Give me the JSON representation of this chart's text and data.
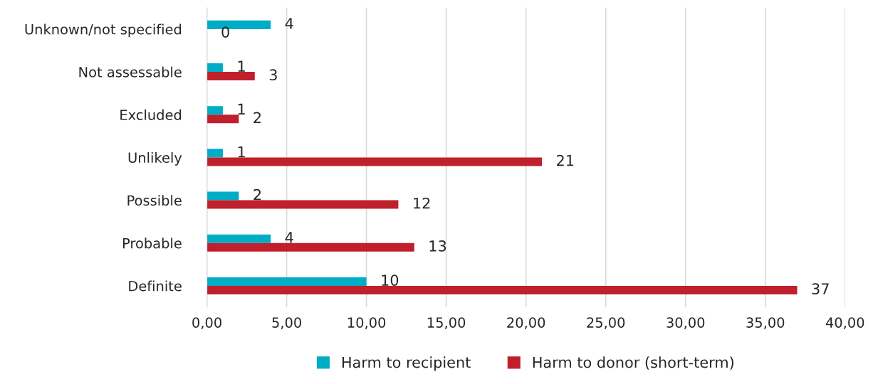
{
  "chart_data": {
    "type": "bar",
    "orientation": "horizontal",
    "categories": [
      "Unknown/not specified",
      "Not assessable",
      "Excluded",
      "Unlikely",
      "Possible",
      "Probable",
      "Definite"
    ],
    "series": [
      {
        "name": "Harm to recipient",
        "color": "#00adc6",
        "values": [
          4,
          1,
          1,
          1,
          2,
          4,
          10
        ]
      },
      {
        "name": "Harm to donor (short-term)",
        "color": "#c01f2c",
        "values": [
          0,
          3,
          2,
          21,
          12,
          13,
          37
        ]
      }
    ],
    "xlim": [
      0,
      40
    ],
    "xticks": [
      {
        "value": 0,
        "label": "0,00"
      },
      {
        "value": 5,
        "label": "5,00"
      },
      {
        "value": 10,
        "label": "10,00"
      },
      {
        "value": 15,
        "label": "15,00"
      },
      {
        "value": 20,
        "label": "20,00"
      },
      {
        "value": 25,
        "label": "25,00"
      },
      {
        "value": 30,
        "label": "30,00"
      },
      {
        "value": 35,
        "label": "35,00"
      },
      {
        "value": 40,
        "label": "40,00"
      }
    ],
    "grid": "x",
    "legend": "bottom",
    "data_labels": true
  }
}
